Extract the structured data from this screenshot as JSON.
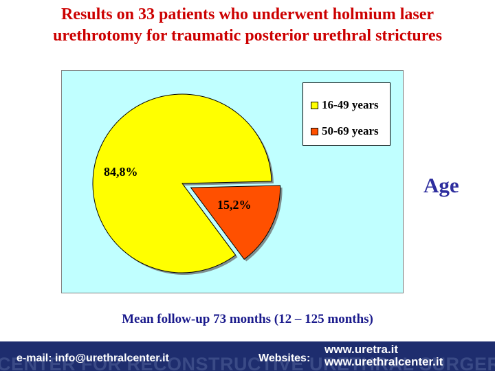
{
  "header": {
    "title_line1": "Results on 33 patients who underwent holmium laser",
    "title_line2": "urethrotomy for traumatic posterior urethral strictures"
  },
  "side_label": "Age",
  "chart_data": {
    "type": "pie",
    "title": "",
    "categories": [
      "16-49 years",
      "50-69 years"
    ],
    "values": [
      84.8,
      15.2
    ],
    "data_labels": [
      "84,8%",
      "15,2%"
    ],
    "colors": [
      "#ffff00",
      "#ff5000"
    ],
    "exploded": [
      false,
      true
    ],
    "legend_position": "top-right",
    "plot_background": "#c0ffff"
  },
  "followup_text": "Mean follow-up 73 months (12 – 125 months)",
  "footer": {
    "email": "e-mail: info@urethralcenter.it",
    "websites_label": "Websites:",
    "site1": "www.uretra.it",
    "site2": "www.urethralcenter.it",
    "watermark": "CENTER FOR RECONSTRUCTIVE URETHRAL SURGERY"
  },
  "colors": {
    "title": "#cc0000",
    "accent_blue": "#2e2e9e",
    "footer_bg": "#1e2d6e"
  }
}
